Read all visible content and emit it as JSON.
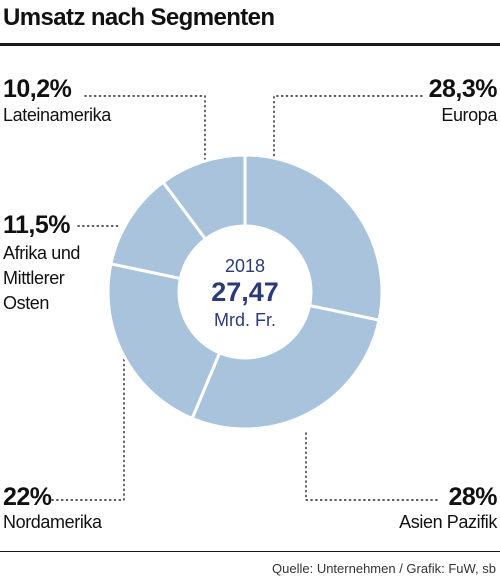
{
  "chart_data": {
    "type": "pie",
    "title": "Umsatz nach Segmenten",
    "categories": [
      "Europa",
      "Asien Pazifik",
      "Nordamerika",
      "Afrika und Mittlerer Osten",
      "Lateinamerika"
    ],
    "values": [
      28.3,
      28,
      22,
      11.5,
      10.2
    ],
    "value_labels": [
      "28,3%",
      "28%",
      "22%",
      "11,5%",
      "10,2%"
    ],
    "donut": true,
    "center_text": {
      "year": "2018",
      "total": "27,47",
      "unit": "Mrd. Fr."
    },
    "slice_color": "#a9c3dd",
    "separator_color": "#ffffff",
    "center_text_color": "#2c3a78",
    "leader_line_color": "#222222"
  },
  "labels": {
    "europa": {
      "pct": "28,3%",
      "name": "Europa"
    },
    "asien": {
      "pct": "28%",
      "name": "Asien Pazifik"
    },
    "nordamerika": {
      "pct": "22%",
      "name": "Nordamerika"
    },
    "afrika": {
      "pct": "11,5%",
      "name_lines": [
        "Afrika und",
        "Mittlerer",
        "Osten"
      ]
    },
    "lateinamerika": {
      "pct": "10,2%",
      "name": "Lateinamerika"
    }
  },
  "source": "Quelle: Unternehmen / Grafik: FuW, sb"
}
